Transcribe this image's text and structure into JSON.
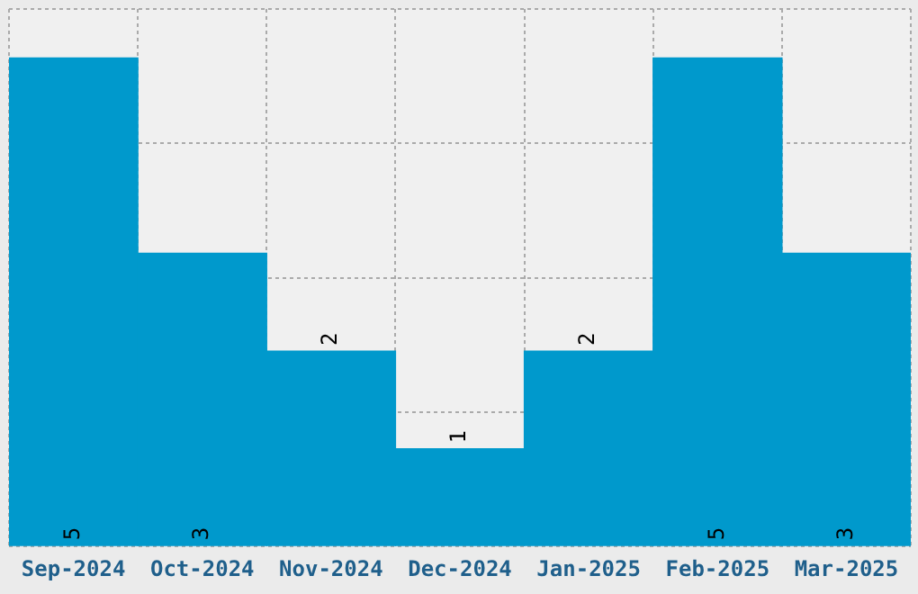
{
  "chart_data": {
    "type": "bar",
    "categories": [
      "Sep-2024",
      "Oct-2024",
      "Nov-2024",
      "Dec-2024",
      "Jan-2025",
      "Feb-2025",
      "Mar-2025"
    ],
    "values": [
      5,
      3,
      2,
      1,
      2,
      5,
      3
    ],
    "color": "#0099cc",
    "ylim": [
      0,
      5.5
    ],
    "yticks": [
      {
        "value": 0,
        "label": null
      },
      {
        "value": 1.375,
        "label": null
      },
      {
        "value": 2.75,
        "label": null
      },
      {
        "value": 4.125,
        "label": null
      },
      {
        "value": 5.5,
        "label": null
      }
    ],
    "grid": true,
    "tick_labels": "x",
    "data_labels": true
  }
}
